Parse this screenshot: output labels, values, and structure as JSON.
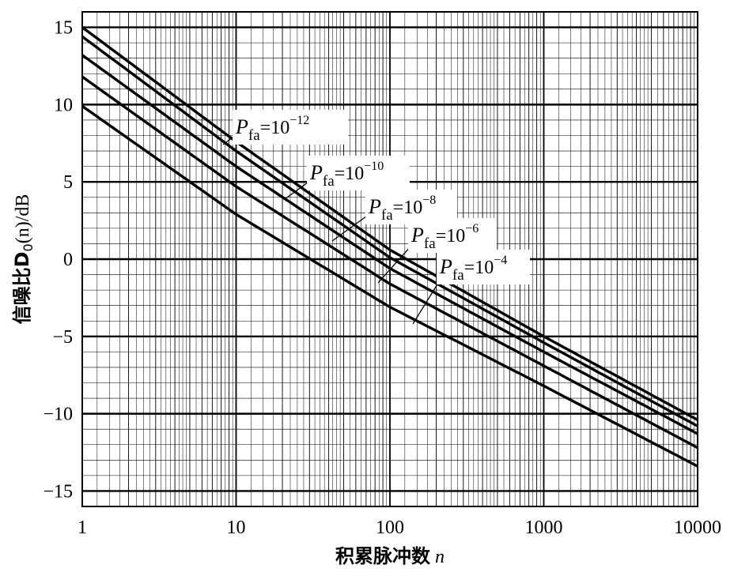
{
  "chart_data": {
    "type": "line",
    "x_scale": "log",
    "xlim": [
      1,
      10000
    ],
    "ylim": [
      -16,
      16
    ],
    "xticks": [
      1,
      10,
      100,
      1000,
      10000
    ],
    "xtick_labels": [
      "1",
      "10",
      "100",
      "1000",
      "10000"
    ],
    "yticks": [
      15,
      10,
      5,
      0,
      -5,
      -10,
      -15
    ],
    "ytick_labels": [
      "15",
      "10",
      "5",
      "0",
      "−5",
      "−10",
      "−15"
    ],
    "xlabel": "积累脉冲数",
    "xlabel_var": "n",
    "ylabel": "信噪比D",
    "ylabel_sub": "0",
    "ylabel_suffix": "(n)/dB",
    "grid": true,
    "series": [
      {
        "name": "P_fa=10^-12",
        "x": [
          1,
          10,
          100,
          1000,
          10000
        ],
        "y": [
          15.0,
          7.6,
          0.6,
          -5.0,
          -10.4
        ]
      },
      {
        "name": "P_fa=10^-10",
        "x": [
          1,
          10,
          100,
          1000,
          10000
        ],
        "y": [
          14.4,
          7.0,
          0.1,
          -5.4,
          -10.8
        ]
      },
      {
        "name": "P_fa=10^-8",
        "x": [
          1,
          10,
          100,
          1000,
          10000
        ],
        "y": [
          13.2,
          6.0,
          -0.6,
          -6.0,
          -11.3
        ]
      },
      {
        "name": "P_fa=10^-6",
        "x": [
          1,
          10,
          100,
          1000,
          10000
        ],
        "y": [
          11.8,
          4.7,
          -1.6,
          -6.9,
          -12.2
        ]
      },
      {
        "name": "P_fa=10^-4",
        "x": [
          1,
          10,
          100,
          1000,
          10000
        ],
        "y": [
          9.9,
          2.9,
          -3.1,
          -8.2,
          -13.4
        ]
      }
    ],
    "annotations": [
      {
        "P": "P",
        "sub": "fa",
        "eq": "=10",
        "exp": "−12"
      },
      {
        "P": "P",
        "sub": "fa",
        "eq": "=10",
        "exp": "−10"
      },
      {
        "P": "P",
        "sub": "fa",
        "eq": "=10",
        "exp": "−8"
      },
      {
        "P": "P",
        "sub": "fa",
        "eq": "=10",
        "exp": "−6"
      },
      {
        "P": "P",
        "sub": "fa",
        "eq": "=10",
        "exp": "−4"
      }
    ]
  }
}
